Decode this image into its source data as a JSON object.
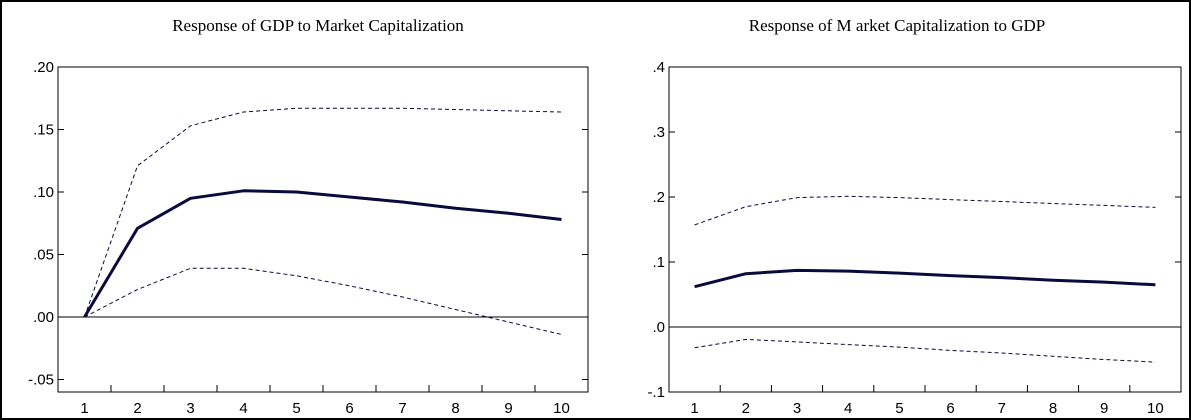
{
  "chart_data": [
    {
      "type": "line",
      "title": "Response of GDP to Market Capitalization",
      "xlabel": "",
      "ylabel": "",
      "x": [
        1,
        2,
        3,
        4,
        5,
        6,
        7,
        8,
        9,
        10
      ],
      "xlim": [
        0.5,
        10.5
      ],
      "ylim": [
        -0.06,
        0.2
      ],
      "yticks": [
        -0.05,
        0.0,
        0.05,
        0.1,
        0.15,
        0.2
      ],
      "ytick_labels": [
        "-.05",
        ".00",
        ".05",
        ".10",
        ".15",
        ".20"
      ],
      "xtick_labels": [
        "1",
        "2",
        "3",
        "4",
        "5",
        "6",
        "7",
        "8",
        "9",
        "10"
      ],
      "zero_line": true,
      "grid": false,
      "series": [
        {
          "role": "response",
          "style": "solid",
          "color": "#0a0a3c",
          "values": [
            0.0,
            0.071,
            0.095,
            0.101,
            0.1,
            0.096,
            0.092,
            0.087,
            0.083,
            0.078
          ]
        },
        {
          "role": "upper",
          "style": "dashed",
          "color": "#0a0a3c",
          "values": [
            0.0,
            0.121,
            0.153,
            0.164,
            0.167,
            0.167,
            0.167,
            0.166,
            0.165,
            0.164
          ]
        },
        {
          "role": "lower",
          "style": "dashed",
          "color": "#0a0a3c",
          "values": [
            0.0,
            0.022,
            0.039,
            0.039,
            0.033,
            0.025,
            0.016,
            0.006,
            -0.004,
            -0.014
          ]
        }
      ]
    },
    {
      "type": "line",
      "title": "Response of M arket Capitalization to GDP",
      "xlabel": "",
      "ylabel": "",
      "x": [
        1,
        2,
        3,
        4,
        5,
        6,
        7,
        8,
        9,
        10
      ],
      "xlim": [
        0.5,
        10.5
      ],
      "ylim": [
        -0.1,
        0.4
      ],
      "yticks": [
        -0.1,
        0.0,
        0.1,
        0.2,
        0.3,
        0.4
      ],
      "ytick_labels": [
        "-.1",
        ".0",
        ".1",
        ".2",
        ".3",
        ".4"
      ],
      "xtick_labels": [
        "1",
        "2",
        "3",
        "4",
        "5",
        "6",
        "7",
        "8",
        "9",
        "10"
      ],
      "zero_line": true,
      "grid": false,
      "series": [
        {
          "role": "response",
          "style": "solid",
          "color": "#0a0a3c",
          "values": [
            0.062,
            0.082,
            0.087,
            0.086,
            0.083,
            0.079,
            0.076,
            0.072,
            0.069,
            0.065
          ]
        },
        {
          "role": "upper",
          "style": "dashed",
          "color": "#0a0a3c",
          "values": [
            0.157,
            0.185,
            0.199,
            0.201,
            0.199,
            0.196,
            0.193,
            0.19,
            0.187,
            0.184
          ]
        },
        {
          "role": "lower",
          "style": "dashed",
          "color": "#0a0a3c",
          "values": [
            -0.032,
            -0.019,
            -0.023,
            -0.027,
            -0.031,
            -0.036,
            -0.04,
            -0.045,
            -0.05,
            -0.054
          ]
        }
      ]
    }
  ]
}
